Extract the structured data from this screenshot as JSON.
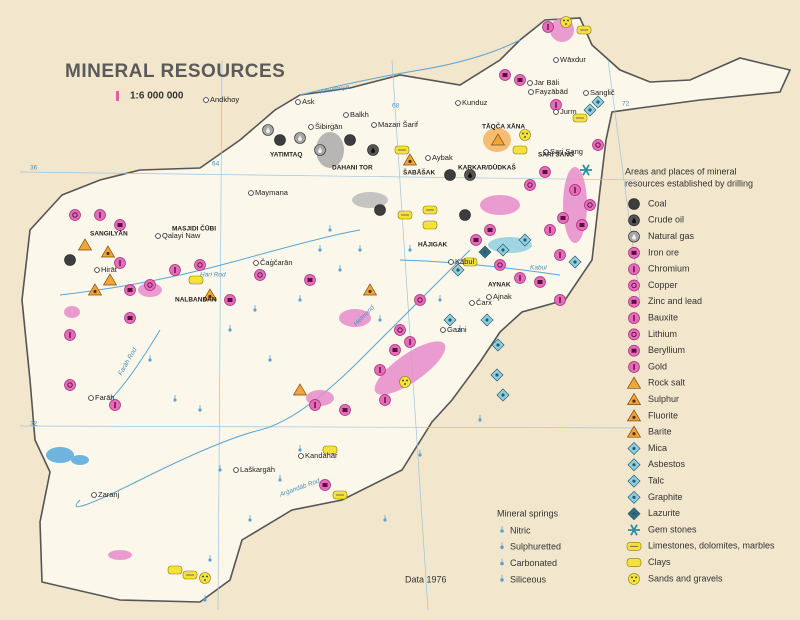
{
  "title": "MINERAL RESOURCES",
  "scale": "1:6 000 000",
  "legend": {
    "heading_lines": [
      "Areas and places of mineral",
      "resources established by drilling"
    ],
    "items": [
      "Coal",
      "Crude oil",
      "Natural gas",
      "Iron ore",
      "Chromium",
      "Copper",
      "Zinc and lead",
      "Bauxite",
      "Lithium",
      "Beryllium",
      "Gold",
      "Rock salt",
      "Sulphur",
      "Fluorite",
      "Barite",
      "Mica",
      "Asbestos",
      "Talc",
      "Graphite",
      "Lazurite",
      "Gem stones",
      "Limestones, dolomites, marbles",
      "Clays",
      "Sands and gravels"
    ]
  },
  "springs": {
    "heading": "Mineral springs",
    "items": [
      "Nitric",
      "Sulphuretted",
      "Carbonated",
      "Siliceous"
    ]
  },
  "note": "Data 1976",
  "places": [
    "Kunduz",
    "Mazari Šarif",
    "Aybak",
    "Šibirġān",
    "Maymana",
    "Qalayi Naw",
    "Hirāt",
    "Čaġčarān",
    "Kābul",
    "Ġazni",
    "Farāh",
    "Laškargāh",
    "Kandahār",
    "Zaranj",
    "Fayzābād",
    "Jurm",
    "Ask",
    "Jar Bāli",
    "Čarx",
    "Andkhoy",
    "Sari Sang",
    "Ajnak",
    "Sanglič",
    "Wāxdur",
    "Balkh"
  ],
  "deposits": [
    "TĀQČA XĀNA",
    "KARKAR/DŪDKAŠ",
    "DAHANI TOR",
    "ŠABĀŠAK",
    "HĀJIGAK",
    "SANGILYĀN",
    "MASJIDI ČŪBI",
    "NALBANDĀN",
    "AYNAK",
    "YATIMTAQ",
    "SARI SANG"
  ],
  "rivers": [
    "Amudarya",
    "Hari Rod",
    "Helmand",
    "Farāh Rod",
    "Arġandāb Rod",
    "Kabul"
  ],
  "graticule": [
    "64",
    "68",
    "72",
    "36",
    "32"
  ]
}
